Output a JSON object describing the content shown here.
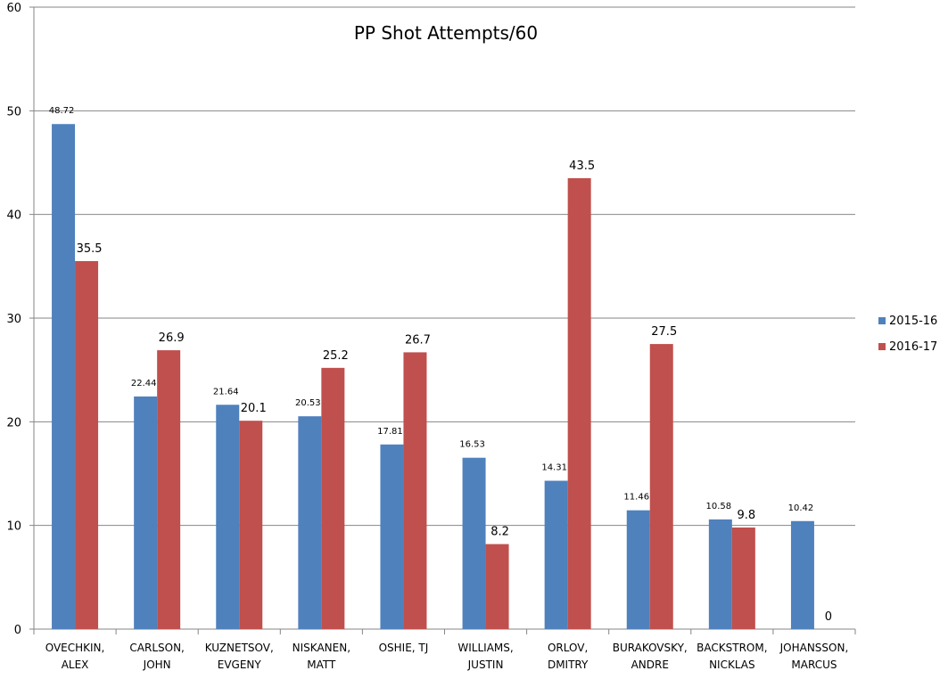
{
  "chart_data": {
    "type": "bar",
    "title": "PP Shot Attempts/60",
    "xlabel": "",
    "ylabel": "",
    "ylim": [
      0,
      60
    ],
    "yticks": [
      0,
      10,
      20,
      30,
      40,
      50,
      60
    ],
    "grid": true,
    "legend_position": "right",
    "categories": [
      [
        "OVECHKIN,",
        "ALEX"
      ],
      [
        "CARLSON,",
        "JOHN"
      ],
      [
        "KUZNETSOV,",
        "EVGENY"
      ],
      [
        "NISKANEN,",
        "MATT"
      ],
      [
        "OSHIE, TJ"
      ],
      [
        "WILLIAMS,",
        "JUSTIN"
      ],
      [
        "ORLOV,",
        "DMITRY"
      ],
      [
        "BURAKOVSKY,",
        "ANDRE"
      ],
      [
        "BACKSTROM,",
        "NICKLAS"
      ],
      [
        "JOHANSSON,",
        "MARCUS"
      ]
    ],
    "series": [
      {
        "name": "2015-16",
        "color": "#4f81bd",
        "values": [
          48.72,
          22.44,
          21.64,
          20.53,
          17.81,
          16.53,
          14.31,
          11.46,
          10.58,
          10.42
        ],
        "labels": [
          "48.72",
          "22.44",
          "21.64",
          "20.53",
          "17.81",
          "16.53",
          "14.31",
          "11.46",
          "10.58",
          "10.42"
        ]
      },
      {
        "name": "2016-17",
        "color": "#c0504d",
        "values": [
          35.5,
          26.9,
          20.1,
          25.2,
          26.7,
          8.2,
          43.5,
          27.5,
          9.8,
          0
        ],
        "labels": [
          "35.5",
          "26.9",
          "20.1",
          "25.2",
          "26.7",
          "8.2",
          "43.5",
          "27.5",
          "9.8",
          "0"
        ]
      }
    ]
  },
  "colors": {
    "grid": "#868686",
    "axis": "#868686"
  }
}
